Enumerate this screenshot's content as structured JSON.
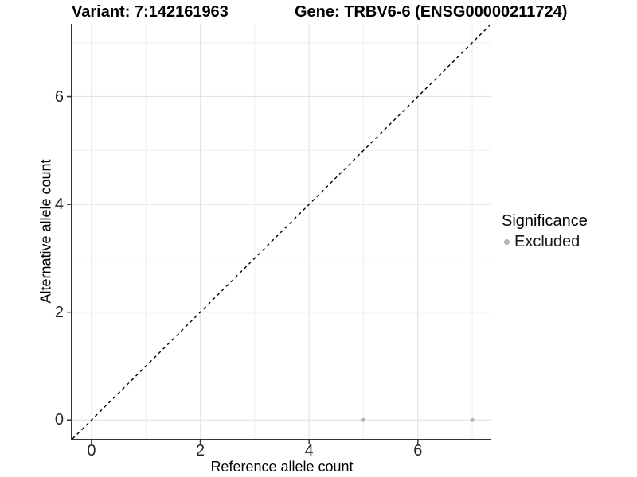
{
  "chart_data": {
    "type": "scatter",
    "title_left": "Variant: 7:142161963",
    "title_right": "Gene: TRBV6-6 (ENSG00000211724)",
    "xlabel": "Reference allele count",
    "ylabel": "Alternative allele count",
    "xlim": [
      -0.35,
      7.35
    ],
    "ylim": [
      -0.35,
      7.35
    ],
    "x_ticks": [
      0,
      2,
      4,
      6
    ],
    "y_ticks": [
      0,
      2,
      4,
      6
    ],
    "x_minor_ticks": [
      1,
      3,
      5,
      7
    ],
    "y_minor_ticks": [
      1,
      3,
      5,
      7
    ],
    "grid": "major+minor",
    "legend_position": "right",
    "reference_line": {
      "slope": 1,
      "intercept": 0,
      "style": "dashed",
      "color": "#000000"
    },
    "series": [
      {
        "name": "Excluded",
        "color": "#b3b3b3",
        "points": [
          {
            "x": 5,
            "y": 0
          },
          {
            "x": 7,
            "y": 0
          }
        ]
      }
    ],
    "legend": {
      "title": "Significance",
      "items": [
        {
          "label": "Excluded",
          "color": "#b3b3b3"
        }
      ]
    },
    "style": {
      "grid_major_color": "#e4e4e4",
      "grid_minor_color": "#efefef",
      "axis_line_color": "#333333",
      "tick_label_color": "#262626",
      "point_radius": 2.5
    }
  }
}
